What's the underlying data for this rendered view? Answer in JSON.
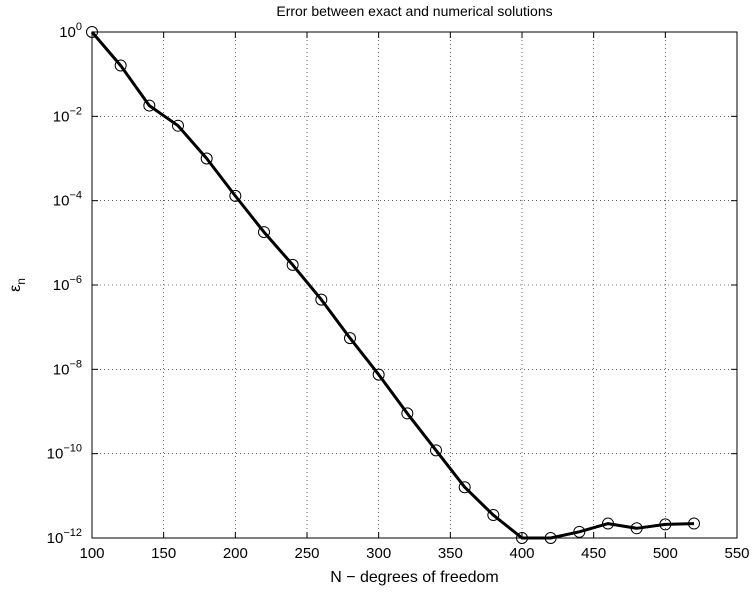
{
  "chart_data": {
    "type": "line",
    "title": "Error between exact and numerical solutions",
    "xlabel": "N − degrees of freedom",
    "ylabel": "ε",
    "ylabel_subscript": "n",
    "xscale": "linear",
    "yscale": "log",
    "xlim": [
      100,
      550
    ],
    "ylim_exponent": [
      -12,
      0
    ],
    "x_ticks": [
      100,
      150,
      200,
      250,
      300,
      350,
      400,
      450,
      500,
      550
    ],
    "x_tick_labels": [
      "100",
      "150",
      "200",
      "250",
      "300",
      "350",
      "400",
      "450",
      "500",
      "550"
    ],
    "y_tick_exponents": [
      0,
      -2,
      -4,
      -6,
      -8,
      -10,
      -12
    ],
    "y_tick_base": "10",
    "grid": true,
    "marker": "circle",
    "line_color": "#000000",
    "series": [
      {
        "x": [
          100,
          120,
          140,
          160,
          180,
          200,
          220,
          240,
          260,
          280,
          300,
          320,
          340,
          360,
          380,
          400,
          420,
          440,
          460,
          480,
          500,
          520
        ],
        "y": [
          1.0,
          0.16,
          0.018,
          0.006,
          0.001,
          0.00013,
          1.8e-05,
          3e-06,
          4.5e-07,
          5.5e-08,
          7.5e-09,
          9e-10,
          1.2e-10,
          1.6e-11,
          3.5e-12,
          1e-12,
          1e-12,
          1.4e-12,
          2.2e-12,
          1.7e-12,
          2.1e-12,
          2.2e-12
        ]
      }
    ]
  }
}
